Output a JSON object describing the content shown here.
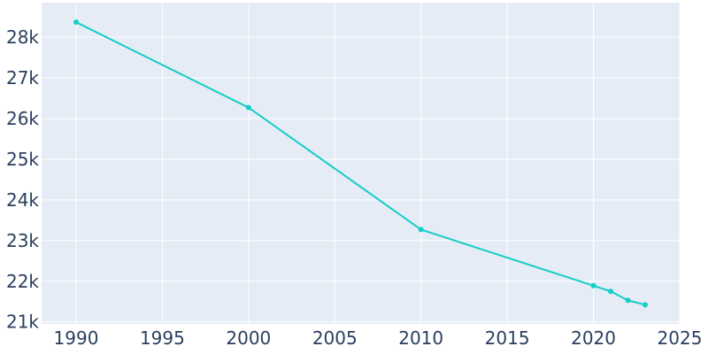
{
  "chart_data": {
    "type": "line",
    "title": "",
    "xlabel": "",
    "ylabel": "",
    "x": [
      1990,
      2000,
      2010,
      2020,
      2021,
      2022,
      2023
    ],
    "series": [
      {
        "values": [
          28370,
          26270,
          23270,
          21890,
          21750,
          21530,
          21420
        ]
      }
    ],
    "xlim": [
      1988,
      2025
    ],
    "ylim": [
      20950,
      28850
    ],
    "x_ticks": [
      1990,
      1995,
      2000,
      2005,
      2010,
      2015,
      2020,
      2025
    ],
    "x_tick_labels": [
      "1990",
      "1995",
      "2000",
      "2005",
      "2010",
      "2015",
      "2020",
      "2025"
    ],
    "y_ticks": [
      21000,
      22000,
      23000,
      24000,
      25000,
      26000,
      27000,
      28000
    ],
    "y_tick_labels": [
      "21k",
      "22k",
      "23k",
      "24k",
      "25k",
      "26k",
      "27k",
      "28k"
    ],
    "grid": true,
    "legend": "none",
    "colors": {
      "plot_background": "#e5ecf6",
      "grid": "#ffffff",
      "line": "#17cdc8",
      "tick_text": "#2a3f5f"
    }
  }
}
